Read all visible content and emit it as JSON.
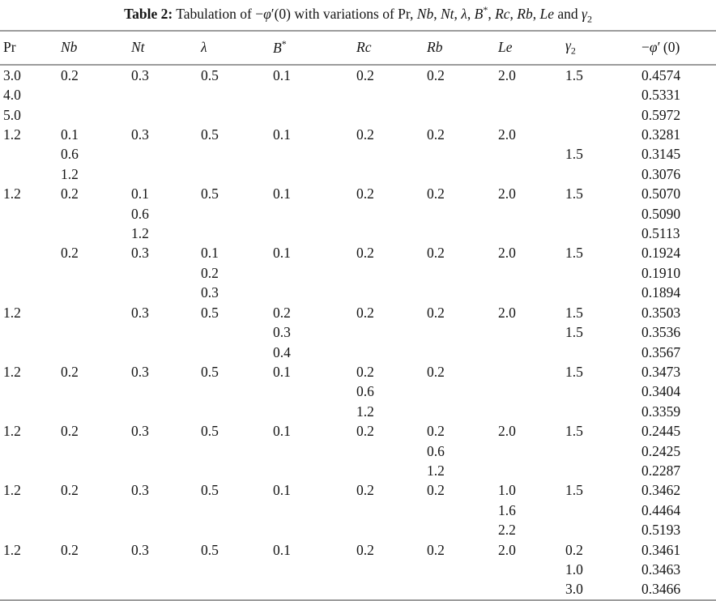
{
  "colors": {
    "background": "#ffffff",
    "text": "#141414",
    "rule": "#9c9c9c"
  },
  "caption": {
    "segments": [
      {
        "text": "Table 2:",
        "bold": true
      },
      {
        "text": " Tabulation of "
      },
      {
        "text": "−"
      },
      {
        "text": "φ",
        "italic": true
      },
      {
        "text": "′(0) with variations of Pr, "
      },
      {
        "text": "Nb",
        "italic": true
      },
      {
        "text": ", "
      },
      {
        "text": "Nt",
        "italic": true
      },
      {
        "text": ", "
      },
      {
        "text": "λ",
        "italic": true
      },
      {
        "text": ", "
      },
      {
        "text": "B",
        "italic": true
      },
      {
        "text": "*",
        "sup": true
      },
      {
        "text": ", "
      },
      {
        "text": "Rc",
        "italic": true
      },
      {
        "text": ", "
      },
      {
        "text": "Rb",
        "italic": true
      },
      {
        "text": ", "
      },
      {
        "text": "Le",
        "italic": true
      },
      {
        "text": " and "
      },
      {
        "text": "γ",
        "italic": true
      },
      {
        "text": "2",
        "sub": true
      }
    ]
  },
  "table": {
    "headers": [
      {
        "id": "pr",
        "segments": [
          {
            "text": "Pr"
          }
        ]
      },
      {
        "id": "nb",
        "segments": [
          {
            "text": "Nb",
            "italic": true
          }
        ]
      },
      {
        "id": "nt",
        "segments": [
          {
            "text": "Nt",
            "italic": true
          }
        ]
      },
      {
        "id": "lambda",
        "segments": [
          {
            "text": "λ",
            "italic": true
          }
        ]
      },
      {
        "id": "b-star",
        "segments": [
          {
            "text": "B",
            "italic": true
          },
          {
            "text": "*",
            "sup": true
          }
        ]
      },
      {
        "id": "rc",
        "segments": [
          {
            "text": "Rc",
            "italic": true
          }
        ]
      },
      {
        "id": "rb",
        "segments": [
          {
            "text": "Rb",
            "italic": true
          }
        ]
      },
      {
        "id": "le",
        "segments": [
          {
            "text": "Le",
            "italic": true
          }
        ]
      },
      {
        "id": "gamma2",
        "segments": [
          {
            "text": "γ",
            "italic": true
          },
          {
            "text": "2",
            "sub": true
          }
        ]
      },
      {
        "id": "phi-prime-0",
        "segments": [
          {
            "text": "−"
          },
          {
            "text": "φ",
            "italic": true
          },
          {
            "text": "′ (0)"
          }
        ]
      }
    ],
    "rows": [
      [
        "3.0",
        "0.2",
        "0.3",
        "0.5",
        "0.1",
        "0.2",
        "0.2",
        "2.0",
        "1.5",
        "0.4574"
      ],
      [
        "4.0",
        "",
        "",
        "",
        "",
        "",
        "",
        "",
        "",
        "0.5331"
      ],
      [
        "5.0",
        "",
        "",
        "",
        "",
        "",
        "",
        "",
        "",
        "0.5972"
      ],
      [
        "1.2",
        "0.1",
        "0.3",
        "0.5",
        "0.1",
        "0.2",
        "0.2",
        "2.0",
        "",
        "0.3281"
      ],
      [
        "",
        "0.6",
        "",
        "",
        "",
        "",
        "",
        "",
        "1.5",
        "0.3145"
      ],
      [
        "",
        "1.2",
        "",
        "",
        "",
        "",
        "",
        "",
        "",
        "0.3076"
      ],
      [
        "1.2",
        "0.2",
        "0.1",
        "0.5",
        "0.1",
        "0.2",
        "0.2",
        "2.0",
        "1.5",
        "0.5070"
      ],
      [
        "",
        "",
        "0.6",
        "",
        "",
        "",
        "",
        "",
        "",
        "0.5090"
      ],
      [
        "",
        "",
        "1.2",
        "",
        "",
        "",
        "",
        "",
        "",
        "0.5113"
      ],
      [
        "",
        "0.2",
        "0.3",
        "0.1",
        "0.1",
        "0.2",
        "0.2",
        "2.0",
        "1.5",
        "0.1924"
      ],
      [
        "",
        "",
        "",
        "0.2",
        "",
        "",
        "",
        "",
        "",
        "0.1910"
      ],
      [
        "",
        "",
        "",
        "0.3",
        "",
        "",
        "",
        "",
        "",
        "0.1894"
      ],
      [
        "1.2",
        "",
        "0.3",
        "0.5",
        "0.2",
        "0.2",
        "0.2",
        "2.0",
        "1.5",
        "0.3503"
      ],
      [
        "",
        "",
        "",
        "",
        "0.3",
        "",
        "",
        "",
        "1.5",
        "0.3536"
      ],
      [
        "",
        "",
        "",
        "",
        "0.4",
        "",
        "",
        "",
        "",
        "0.3567"
      ],
      [
        "1.2",
        "0.2",
        "0.3",
        "0.5",
        "0.1",
        "0.2",
        "0.2",
        "",
        "1.5",
        "0.3473"
      ],
      [
        "",
        "",
        "",
        "",
        "",
        "0.6",
        "",
        "",
        "",
        "0.3404"
      ],
      [
        "",
        "",
        "",
        "",
        "",
        "1.2",
        "",
        "",
        "",
        "0.3359"
      ],
      [
        "1.2",
        "0.2",
        "0.3",
        "0.5",
        "0.1",
        "0.2",
        "0.2",
        "2.0",
        "1.5",
        "0.2445"
      ],
      [
        "",
        "",
        "",
        "",
        "",
        "",
        "0.6",
        "",
        "",
        "0.2425"
      ],
      [
        "",
        "",
        "",
        "",
        "",
        "",
        "1.2",
        "",
        "",
        "0.2287"
      ],
      [
        "1.2",
        "0.2",
        "0.3",
        "0.5",
        "0.1",
        "0.2",
        "0.2",
        "1.0",
        "1.5",
        "0.3462"
      ],
      [
        "",
        "",
        "",
        "",
        "",
        "",
        "",
        "1.6",
        "",
        "0.4464"
      ],
      [
        "",
        "",
        "",
        "",
        "",
        "",
        "",
        "2.2",
        "",
        "0.5193"
      ],
      [
        "1.2",
        "0.2",
        "0.3",
        "0.5",
        "0.1",
        "0.2",
        "0.2",
        "2.0",
        "0.2",
        "0.3461"
      ],
      [
        "",
        "",
        "",
        "",
        "",
        "",
        "",
        "",
        "1.0",
        "0.3463"
      ],
      [
        "",
        "",
        "",
        "",
        "",
        "",
        "",
        "",
        "3.0",
        "0.3466"
      ]
    ]
  }
}
